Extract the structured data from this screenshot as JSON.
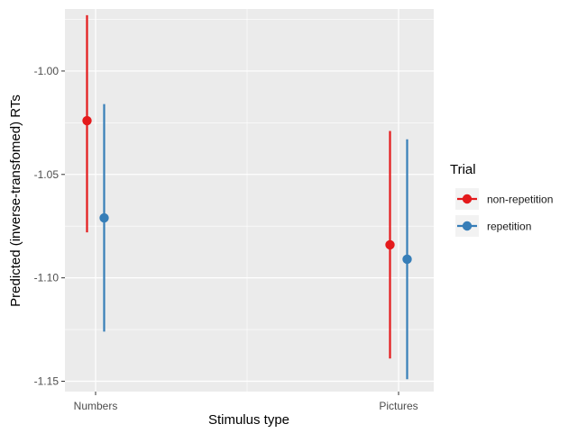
{
  "chart_data": {
    "type": "scatter",
    "subtype": "point-range (estimate with interval)",
    "title": "",
    "xlabel": "Stimulus type",
    "ylabel": "Predicted (inverse-transfomed) RTs",
    "categories": [
      "Numbers",
      "Pictures"
    ],
    "y_ticks": [
      -1.15,
      -1.1,
      -1.05,
      -1.0
    ],
    "y_tick_labels": [
      "-1.15",
      "-1.10",
      "-1.05",
      "-1.00"
    ],
    "ylim": [
      -1.155,
      -0.97
    ],
    "grid": true,
    "legend": {
      "title": "Trial",
      "position": "right"
    },
    "series": [
      {
        "name": "non-repetition",
        "color": "#e41a1c",
        "points": [
          {
            "x": "Numbers",
            "y": -1.024,
            "lower": -1.078,
            "upper": -0.973
          },
          {
            "x": "Pictures",
            "y": -1.084,
            "lower": -1.139,
            "upper": -1.029
          }
        ]
      },
      {
        "name": "repetition",
        "color": "#377eb8",
        "points": [
          {
            "x": "Numbers",
            "y": -1.071,
            "lower": -1.126,
            "upper": -1.016
          },
          {
            "x": "Pictures",
            "y": -1.091,
            "lower": -1.149,
            "upper": -1.033
          }
        ]
      }
    ]
  }
}
